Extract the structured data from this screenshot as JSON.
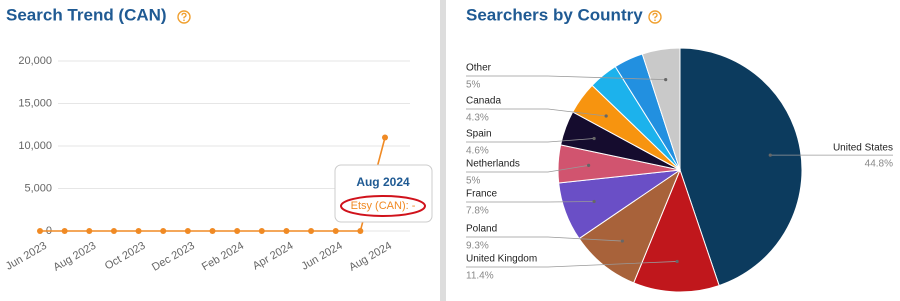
{
  "chart_data": [
    {
      "type": "line",
      "title": "Search Trend (CAN)",
      "categories": [
        "Jun 2023",
        null,
        "Aug 2023",
        null,
        "Oct 2023",
        null,
        "Dec 2023",
        null,
        "Feb 2024",
        null,
        "Apr 2024",
        null,
        "Jun 2024",
        null,
        "Aug 2024"
      ],
      "values": [
        0,
        0,
        0,
        0,
        0,
        0,
        0,
        0,
        0,
        0,
        0,
        0,
        0,
        0,
        11000
      ],
      "color": "#f08a24",
      "ylim": [
        0,
        20000
      ],
      "yticks": [
        0,
        {
          "value": 5000,
          "label": "5,000"
        },
        {
          "value": 10000,
          "label": "10,000"
        },
        {
          "value": 15000,
          "label": "15,000"
        },
        {
          "value": 20000,
          "label": "20,000"
        }
      ],
      "grid": true,
      "tooltip": {
        "title": "Aug 2024",
        "text": "Etsy (CAN): -"
      }
    },
    {
      "type": "pie",
      "title": "Searchers by Country",
      "categories": [
        "United States",
        "United Kingdom",
        "Poland",
        "France",
        "Netherlands",
        "Spain",
        "Canada",
        null,
        null,
        "Other"
      ],
      "values": [
        44.8,
        11.4,
        9.3,
        7.8,
        5,
        4.6,
        4.3,
        3.9,
        3.9,
        5
      ],
      "value_labels": [
        "44.8%",
        "11.4%",
        "9.3%",
        "7.8%",
        "5%",
        "4.6%",
        "4.3%",
        null,
        null,
        "5%"
      ],
      "colors": [
        "#0c3b5e",
        "#c0171c",
        "#a8623a",
        "#6a4fc6",
        "#d1546f",
        "#150c2e",
        "#f7940f",
        "#1cb2ec",
        "#2290e0",
        "#c9c9c9"
      ]
    }
  ]
}
